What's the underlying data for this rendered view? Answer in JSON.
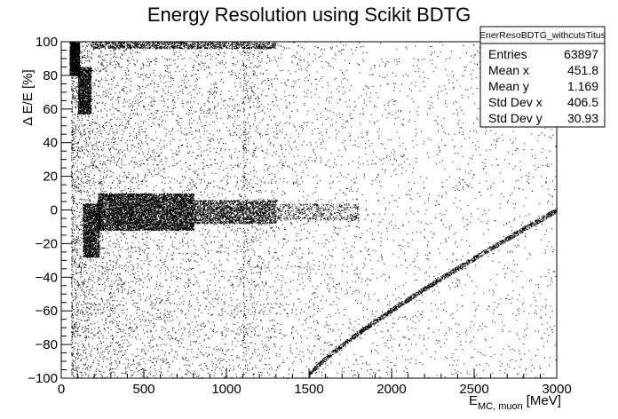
{
  "chart_data": {
    "type": "scatter",
    "title": "Energy Resolution using Scikit BDTG",
    "xlabel_main": "E",
    "xlabel_sub": "MC, muon",
    "xlabel_unit": "[MeV]",
    "ylabel": "Δ E/E [%]",
    "xlim": [
      0,
      3000
    ],
    "ylim": [
      -100,
      100
    ],
    "x_ticks": [
      "0",
      "500",
      "1000",
      "1500",
      "2000",
      "2500",
      "3000"
    ],
    "y_ticks": [
      "−100",
      "−80",
      "−60",
      "−40",
      "−20",
      "0",
      "20",
      "40",
      "60",
      "80",
      "100"
    ],
    "x_tick_values": [
      0,
      500,
      1000,
      1500,
      2000,
      2500,
      3000
    ],
    "y_tick_values": [
      -100,
      -80,
      -60,
      -40,
      -20,
      0,
      20,
      40,
      60,
      80,
      100
    ],
    "grid": false,
    "marker_color": "#000000",
    "stats_box": {
      "name": "EnerResoBDTG_withcutsTitus",
      "rows": [
        {
          "label": "Entries",
          "value": "63897"
        },
        {
          "label": "Mean x",
          "value": "451.8"
        },
        {
          "label": "Mean y",
          "value": "1.169"
        },
        {
          "label": "Std Dev x",
          "value": "406.5"
        },
        {
          "label": "Std Dev y",
          "value": "30.93"
        }
      ]
    },
    "entries": 63897,
    "mean_x": 451.8,
    "mean_y": 1.169,
    "std_dev_x": 406.5,
    "std_dev_y": 30.93,
    "series": [
      {
        "regions": [
          {
            "kind": "band",
            "x": [
              220,
              800
            ],
            "y": [
              -12,
              10
            ],
            "count": 9000
          },
          {
            "kind": "band",
            "x": [
              800,
              1300
            ],
            "y": [
              -8,
              6
            ],
            "count": 2200
          },
          {
            "kind": "band",
            "x": [
              1300,
              1800
            ],
            "y": [
              -6,
              4
            ],
            "count": 500
          },
          {
            "kind": "band",
            "x": [
              130,
              230
            ],
            "y": [
              -28,
              4
            ],
            "count": 1800
          },
          {
            "kind": "band",
            "x": [
              50,
              110
            ],
            "y": [
              80,
              100
            ],
            "count": 1400
          },
          {
            "kind": "band",
            "x": [
              100,
              180
            ],
            "y": [
              57,
              85
            ],
            "count": 1600
          },
          {
            "kind": "band",
            "x": [
              180,
              1300
            ],
            "y": [
              96,
              100
            ],
            "count": 1200
          },
          {
            "kind": "curve",
            "x": [
              1500,
              3000
            ],
            "y_start": -98,
            "y_end": 0,
            "count": 1800
          },
          {
            "kind": "spread",
            "x": [
              60,
              1100
            ],
            "y": [
              -100,
              100
            ],
            "count": 22000
          },
          {
            "kind": "spread",
            "x": [
              1100,
              3000
            ],
            "y": [
              -100,
              100
            ],
            "count": 3500
          }
        ]
      }
    ]
  }
}
